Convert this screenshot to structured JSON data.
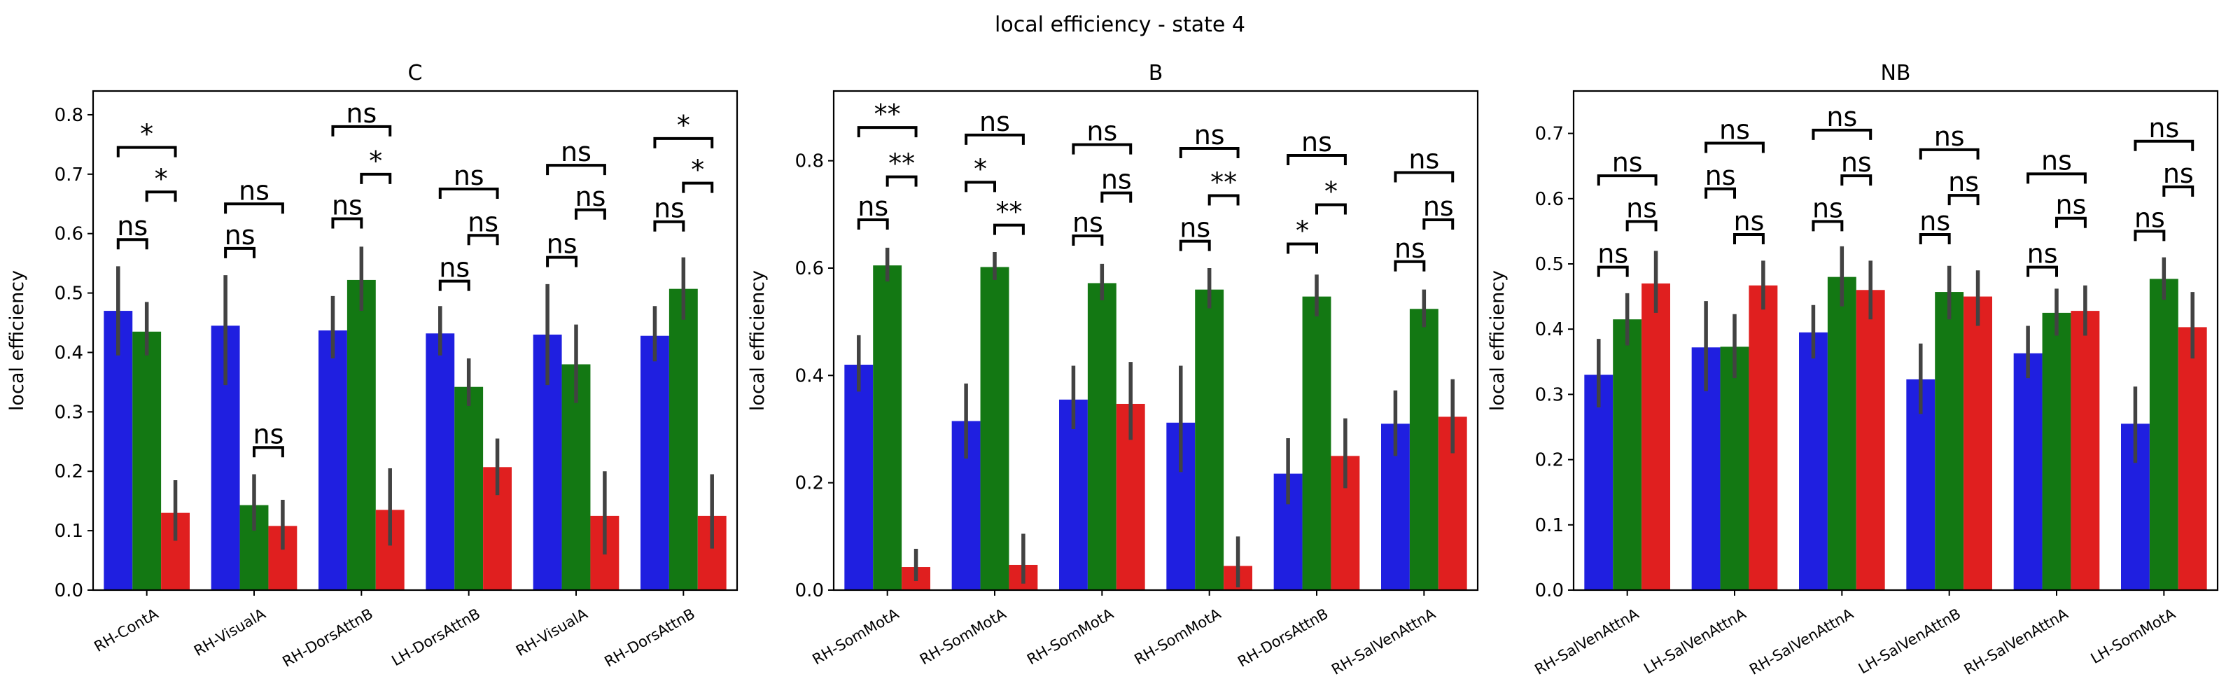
{
  "figure": {
    "suptitle": "local efficiency - state 4"
  },
  "colors": {
    "series": [
      "#1f1fe0",
      "#137813",
      "#e01f1f"
    ],
    "error_bar": "#424242"
  },
  "chart_data": [
    {
      "type": "bar",
      "title": "C",
      "ylabel": "local efficiency",
      "xlabel": "",
      "ylim": [
        0,
        0.84
      ],
      "yticks": [
        0.0,
        0.1,
        0.2,
        0.3,
        0.4,
        0.5,
        0.6,
        0.7,
        0.8
      ],
      "categories": [
        "RH-ContA",
        "RH-VisualA",
        "RH-DorsAttnB",
        "LH-DorsAttnB",
        "RH-VisualA",
        "RH-DorsAttnB"
      ],
      "series": [
        {
          "values": [
            0.47,
            0.445,
            0.437,
            0.432,
            0.43,
            0.428
          ],
          "err_low": [
            0.395,
            0.345,
            0.39,
            0.395,
            0.345,
            0.385
          ],
          "err_high": [
            0.545,
            0.53,
            0.495,
            0.478,
            0.515,
            0.478
          ]
        },
        {
          "values": [
            0.435,
            0.143,
            0.522,
            0.342,
            0.38,
            0.507
          ],
          "err_low": [
            0.395,
            0.1,
            0.47,
            0.31,
            0.315,
            0.455
          ],
          "err_high": [
            0.485,
            0.195,
            0.578,
            0.39,
            0.447,
            0.56
          ]
        },
        {
          "values": [
            0.13,
            0.108,
            0.135,
            0.207,
            0.125,
            0.125
          ],
          "err_low": [
            0.083,
            0.068,
            0.075,
            0.16,
            0.06,
            0.07
          ],
          "err_high": [
            0.185,
            0.152,
            0.205,
            0.255,
            0.2,
            0.195
          ]
        }
      ],
      "significance": [
        {
          "cat": 0,
          "pair": "a-b",
          "label": "ns",
          "y": 0.59
        },
        {
          "cat": 0,
          "pair": "b-c",
          "label": "*",
          "y": 0.67
        },
        {
          "cat": 0,
          "pair": "a-c",
          "label": "*",
          "y": 0.745
        },
        {
          "cat": 1,
          "pair": "a-b",
          "label": "ns",
          "y": 0.575
        },
        {
          "cat": 1,
          "pair": "b-c",
          "label": "ns",
          "y": 0.24
        },
        {
          "cat": 1,
          "pair": "a-c",
          "label": "ns",
          "y": 0.65
        },
        {
          "cat": 2,
          "pair": "a-b",
          "label": "ns",
          "y": 0.625
        },
        {
          "cat": 2,
          "pair": "b-c",
          "label": "*",
          "y": 0.7
        },
        {
          "cat": 2,
          "pair": "a-c",
          "label": "ns",
          "y": 0.78
        },
        {
          "cat": 3,
          "pair": "a-b",
          "label": "ns",
          "y": 0.52
        },
        {
          "cat": 3,
          "pair": "b-c",
          "label": "ns",
          "y": 0.597
        },
        {
          "cat": 3,
          "pair": "a-c",
          "label": "ns",
          "y": 0.675
        },
        {
          "cat": 4,
          "pair": "a-b",
          "label": "ns",
          "y": 0.56
        },
        {
          "cat": 4,
          "pair": "b-c",
          "label": "ns",
          "y": 0.64
        },
        {
          "cat": 4,
          "pair": "a-c",
          "label": "ns",
          "y": 0.715
        },
        {
          "cat": 5,
          "pair": "a-b",
          "label": "ns",
          "y": 0.62
        },
        {
          "cat": 5,
          "pair": "b-c",
          "label": "*",
          "y": 0.685
        },
        {
          "cat": 5,
          "pair": "a-c",
          "label": "*",
          "y": 0.76
        }
      ]
    },
    {
      "type": "bar",
      "title": "B",
      "ylabel": "local efficiency",
      "xlabel": "",
      "ylim": [
        0,
        0.93
      ],
      "yticks": [
        0.0,
        0.2,
        0.4,
        0.6,
        0.8
      ],
      "categories": [
        "RH-SomMotA",
        "RH-SomMotA",
        "RH-SomMotA",
        "RH-SomMotA",
        "RH-DorsAttnB",
        "RH-SalVenAttnA"
      ],
      "series": [
        {
          "values": [
            0.42,
            0.315,
            0.355,
            0.312,
            0.217,
            0.31
          ],
          "err_low": [
            0.37,
            0.245,
            0.3,
            0.22,
            0.16,
            0.25
          ],
          "err_high": [
            0.475,
            0.385,
            0.418,
            0.418,
            0.283,
            0.372
          ]
        },
        {
          "values": [
            0.605,
            0.602,
            0.572,
            0.56,
            0.547,
            0.524
          ],
          "err_low": [
            0.575,
            0.578,
            0.54,
            0.525,
            0.51,
            0.49
          ],
          "err_high": [
            0.638,
            0.63,
            0.608,
            0.6,
            0.588,
            0.56
          ]
        },
        {
          "values": [
            0.043,
            0.047,
            0.347,
            0.045,
            0.25,
            0.323
          ],
          "err_low": [
            0.017,
            0.012,
            0.28,
            0.005,
            0.19,
            0.255
          ],
          "err_high": [
            0.077,
            0.105,
            0.425,
            0.1,
            0.32,
            0.393
          ]
        }
      ],
      "significance": [
        {
          "cat": 0,
          "pair": "a-b",
          "label": "ns",
          "y": 0.69
        },
        {
          "cat": 0,
          "pair": "b-c",
          "label": "**",
          "y": 0.77
        },
        {
          "cat": 0,
          "pair": "a-c",
          "label": "**",
          "y": 0.862
        },
        {
          "cat": 1,
          "pair": "a-b",
          "label": "*",
          "y": 0.76
        },
        {
          "cat": 1,
          "pair": "b-c",
          "label": "**",
          "y": 0.68
        },
        {
          "cat": 1,
          "pair": "a-c",
          "label": "ns",
          "y": 0.848
        },
        {
          "cat": 2,
          "pair": "a-b",
          "label": "ns",
          "y": 0.66
        },
        {
          "cat": 2,
          "pair": "b-c",
          "label": "ns",
          "y": 0.74
        },
        {
          "cat": 2,
          "pair": "a-c",
          "label": "ns",
          "y": 0.83
        },
        {
          "cat": 3,
          "pair": "a-b",
          "label": "ns",
          "y": 0.65
        },
        {
          "cat": 3,
          "pair": "b-c",
          "label": "**",
          "y": 0.735
        },
        {
          "cat": 3,
          "pair": "a-c",
          "label": "ns",
          "y": 0.823
        },
        {
          "cat": 4,
          "pair": "a-b",
          "label": "*",
          "y": 0.645
        },
        {
          "cat": 4,
          "pair": "b-c",
          "label": "*",
          "y": 0.718
        },
        {
          "cat": 4,
          "pair": "a-c",
          "label": "ns",
          "y": 0.81
        },
        {
          "cat": 5,
          "pair": "a-b",
          "label": "ns",
          "y": 0.612
        },
        {
          "cat": 5,
          "pair": "b-c",
          "label": "ns",
          "y": 0.69
        },
        {
          "cat": 5,
          "pair": "a-c",
          "label": "ns",
          "y": 0.778
        }
      ]
    },
    {
      "type": "bar",
      "title": "NB",
      "ylabel": "local efficiency",
      "xlabel": "",
      "ylim": [
        0,
        0.765
      ],
      "yticks": [
        0.0,
        0.1,
        0.2,
        0.3,
        0.4,
        0.5,
        0.6,
        0.7
      ],
      "categories": [
        "RH-SalVenAttnA",
        "LH-SalVenAttnA",
        "RH-SalVenAttnA",
        "LH-SalVenAttnB",
        "RH-SalVenAttnA",
        "LH-SomMotA"
      ],
      "series": [
        {
          "values": [
            0.33,
            0.372,
            0.395,
            0.323,
            0.363,
            0.255
          ],
          "err_low": [
            0.28,
            0.305,
            0.355,
            0.27,
            0.325,
            0.195
          ],
          "err_high": [
            0.385,
            0.443,
            0.437,
            0.378,
            0.405,
            0.312
          ]
        },
        {
          "values": [
            0.415,
            0.373,
            0.48,
            0.457,
            0.425,
            0.477
          ],
          "err_low": [
            0.375,
            0.325,
            0.435,
            0.415,
            0.39,
            0.445
          ],
          "err_high": [
            0.455,
            0.423,
            0.527,
            0.497,
            0.462,
            0.51
          ]
        },
        {
          "values": [
            0.47,
            0.467,
            0.46,
            0.45,
            0.428,
            0.403
          ],
          "err_low": [
            0.425,
            0.43,
            0.415,
            0.405,
            0.39,
            0.355
          ],
          "err_high": [
            0.52,
            0.505,
            0.505,
            0.49,
            0.467,
            0.457
          ]
        }
      ],
      "significance": [
        {
          "cat": 0,
          "pair": "a-b",
          "label": "ns",
          "y": 0.495
        },
        {
          "cat": 0,
          "pair": "b-c",
          "label": "ns",
          "y": 0.565
        },
        {
          "cat": 0,
          "pair": "a-c",
          "label": "ns",
          "y": 0.635
        },
        {
          "cat": 1,
          "pair": "a-b",
          "label": "ns",
          "y": 0.615
        },
        {
          "cat": 1,
          "pair": "b-c",
          "label": "ns",
          "y": 0.545
        },
        {
          "cat": 1,
          "pair": "a-c",
          "label": "ns",
          "y": 0.685
        },
        {
          "cat": 2,
          "pair": "a-b",
          "label": "ns",
          "y": 0.565
        },
        {
          "cat": 2,
          "pair": "b-c",
          "label": "ns",
          "y": 0.635
        },
        {
          "cat": 2,
          "pair": "a-c",
          "label": "ns",
          "y": 0.705
        },
        {
          "cat": 3,
          "pair": "a-b",
          "label": "ns",
          "y": 0.545
        },
        {
          "cat": 3,
          "pair": "b-c",
          "label": "ns",
          "y": 0.605
        },
        {
          "cat": 3,
          "pair": "a-c",
          "label": "ns",
          "y": 0.675
        },
        {
          "cat": 4,
          "pair": "a-b",
          "label": "ns",
          "y": 0.495
        },
        {
          "cat": 4,
          "pair": "b-c",
          "label": "ns",
          "y": 0.57
        },
        {
          "cat": 4,
          "pair": "a-c",
          "label": "ns",
          "y": 0.638
        },
        {
          "cat": 5,
          "pair": "a-b",
          "label": "ns",
          "y": 0.55
        },
        {
          "cat": 5,
          "pair": "b-c",
          "label": "ns",
          "y": 0.618
        },
        {
          "cat": 5,
          "pair": "a-c",
          "label": "ns",
          "y": 0.688
        }
      ]
    }
  ]
}
